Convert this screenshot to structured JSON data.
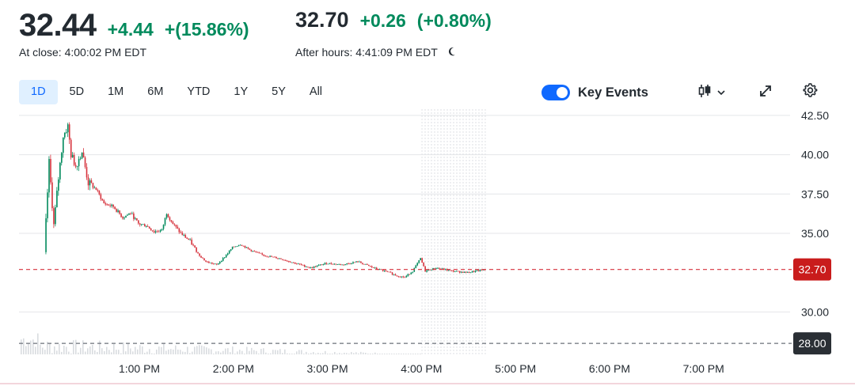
{
  "quote": {
    "close_price": "32.44",
    "close_change": "+4.44",
    "close_change_pct": "+(15.86%)",
    "close_label": "At close: 4:00:02 PM EDT",
    "after_price": "32.70",
    "after_change": "+0.26",
    "after_change_pct": "(+0.80%)",
    "after_label": "After hours: 4:41:09 PM EDT"
  },
  "toolbar": {
    "ranges": [
      "1D",
      "5D",
      "1M",
      "6M",
      "YTD",
      "1Y",
      "5Y",
      "All"
    ],
    "active_range": "1D",
    "key_events_label": "Key Events",
    "key_events_on": true
  },
  "colors": {
    "up": "#008a5c",
    "down": "#d6323c",
    "accent": "#0f69ff",
    "price_tag": "#c91c1c",
    "prev_close_tag": "#2a2f35"
  },
  "icons": [
    "moon-icon",
    "candlestick-type-icon",
    "chevron-down-icon",
    "expand-icon",
    "gear-icon"
  ],
  "chart_data": {
    "type": "candlestick",
    "y_ticks": [
      "42.50",
      "40.00",
      "37.50",
      "35.00",
      "30.00"
    ],
    "x_ticks": [
      "1:00 PM",
      "2:00 PM",
      "3:00 PM",
      "4:00 PM",
      "5:00 PM",
      "6:00 PM",
      "7:00 PM"
    ],
    "ylim": [
      27.3,
      43.3
    ],
    "current_price": 32.7,
    "current_price_label": "32.70",
    "previous_close": 28.0,
    "previous_close_label": "28.00",
    "after_hours_range": [
      "4:00 PM",
      "4:41 PM"
    ],
    "price_path": [
      [
        "12:00 PM",
        33.8
      ],
      [
        "12:03 PM",
        39.5
      ],
      [
        "12:06 PM",
        35.5
      ],
      [
        "12:09 PM",
        38.5
      ],
      [
        "12:12 PM",
        41.2
      ],
      [
        "12:15 PM",
        41.8
      ],
      [
        "12:17 PM",
        40.0
      ],
      [
        "12:20 PM",
        39.3
      ],
      [
        "12:24 PM",
        40.2
      ],
      [
        "12:28 PM",
        38.2
      ],
      [
        "12:33 PM",
        37.8
      ],
      [
        "12:38 PM",
        36.9
      ],
      [
        "12:44 PM",
        36.7
      ],
      [
        "12:50 PM",
        36.0
      ],
      [
        "12:55 PM",
        36.3
      ],
      [
        "1:00 PM",
        35.6
      ],
      [
        "1:05 PM",
        35.5
      ],
      [
        "1:10 PM",
        35.1
      ],
      [
        "1:15 PM",
        35.2
      ],
      [
        "1:18 PM",
        36.3
      ],
      [
        "1:22 PM",
        35.6
      ],
      [
        "1:27 PM",
        35.0
      ],
      [
        "1:33 PM",
        34.5
      ],
      [
        "1:38 PM",
        33.7
      ],
      [
        "1:43 PM",
        33.2
      ],
      [
        "1:50 PM",
        33.0
      ],
      [
        "1:55 PM",
        33.5
      ],
      [
        "2:00 PM",
        34.1
      ],
      [
        "2:05 PM",
        34.3
      ],
      [
        "2:12 PM",
        33.9
      ],
      [
        "2:20 PM",
        33.6
      ],
      [
        "2:30 PM",
        33.4
      ],
      [
        "2:40 PM",
        33.1
      ],
      [
        "2:50 PM",
        32.8
      ],
      [
        "3:00 PM",
        33.1
      ],
      [
        "3:10 PM",
        33.0
      ],
      [
        "3:20 PM",
        33.2
      ],
      [
        "3:30 PM",
        32.8
      ],
      [
        "3:40 PM",
        32.5
      ],
      [
        "3:45 PM",
        32.3
      ],
      [
        "3:50 PM",
        32.2
      ],
      [
        "3:55 PM",
        32.6
      ],
      [
        "4:00 PM",
        33.4
      ],
      [
        "4:03 PM",
        32.6
      ],
      [
        "4:10 PM",
        32.8
      ],
      [
        "4:20 PM",
        32.6
      ],
      [
        "4:30 PM",
        32.5
      ],
      [
        "4:41 PM",
        32.7
      ]
    ]
  }
}
